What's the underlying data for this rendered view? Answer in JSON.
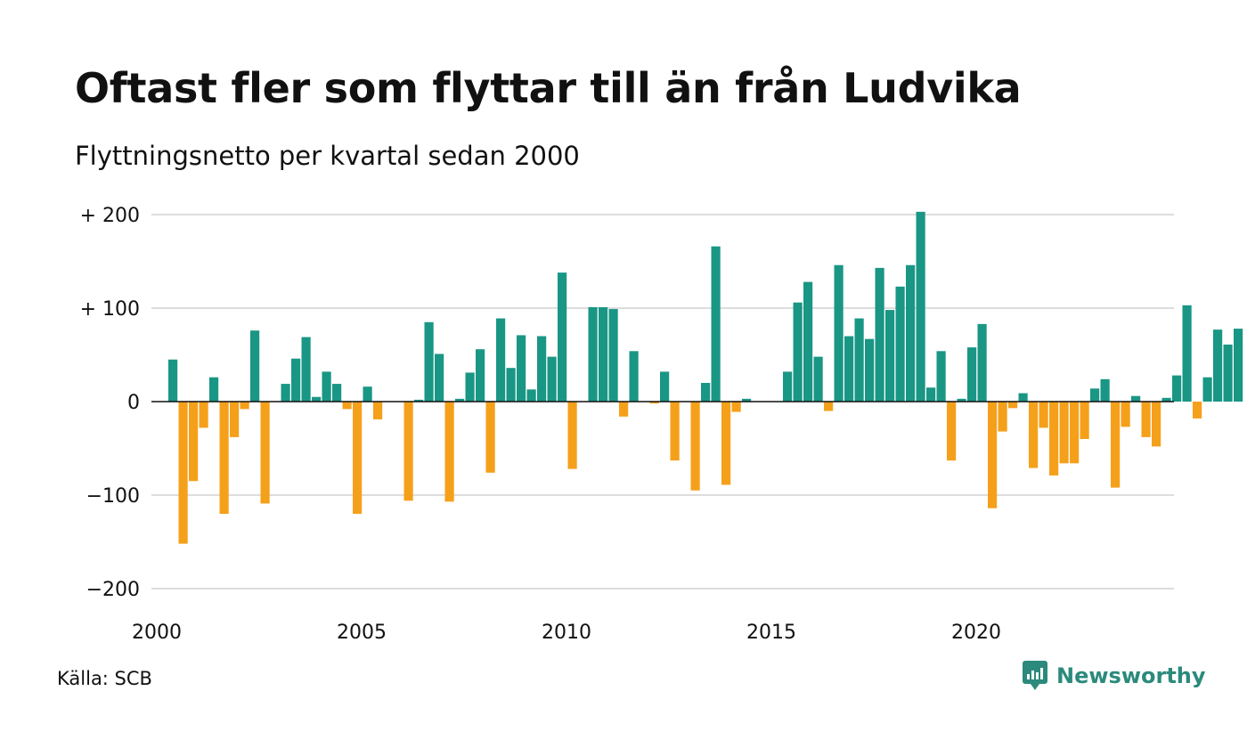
{
  "header": {
    "title": "Oftast fler som flyttar till än från Ludvika",
    "subtitle": "Flyttningsnetto per kvartal sedan 2000"
  },
  "footer": {
    "source": "Källa: SCB",
    "brand": "Newsworthy",
    "brand_icon": "newsworthy-logo-icon"
  },
  "colors": {
    "positive": "#1a9685",
    "negative": "#f5a01a",
    "grid": "#dddddd",
    "brand": "#2b8a7c"
  },
  "chart_data": {
    "type": "bar",
    "x_start": "2000 Q1",
    "x_ticks": [
      "2000",
      "2005",
      "2010",
      "2015",
      "2020"
    ],
    "y_ticks": [
      "+ 200",
      "+ 100",
      "0",
      "−100",
      "−200"
    ],
    "y_tick_values": [
      200,
      100,
      0,
      -100,
      -200
    ],
    "ylim": [
      -200,
      200
    ],
    "grid": true,
    "values": [
      45,
      -152,
      -85,
      -28,
      26,
      -120,
      -38,
      -8,
      76,
      -109,
      0,
      19,
      46,
      69,
      5,
      32,
      19,
      -8,
      -120,
      16,
      -19,
      0,
      0,
      -106,
      2,
      85,
      51,
      -107,
      3,
      31,
      56,
      -76,
      89,
      36,
      71,
      13,
      70,
      48,
      138,
      -72,
      0,
      101,
      101,
      99,
      -16,
      54,
      0,
      -2,
      32,
      -63,
      0,
      -95,
      20,
      166,
      -89,
      -11,
      3,
      0,
      0,
      0,
      32,
      106,
      128,
      48,
      -10,
      146,
      70,
      89,
      67,
      143,
      98,
      123,
      146,
      203,
      15,
      54,
      -63,
      3,
      58,
      83,
      -114,
      -32,
      -7,
      9,
      -71,
      -28,
      -79,
      -66,
      -66,
      -40,
      14,
      24,
      -92,
      -27,
      6,
      -38,
      -48,
      4,
      28,
      103,
      -18,
      26,
      77,
      61,
      78
    ]
  }
}
